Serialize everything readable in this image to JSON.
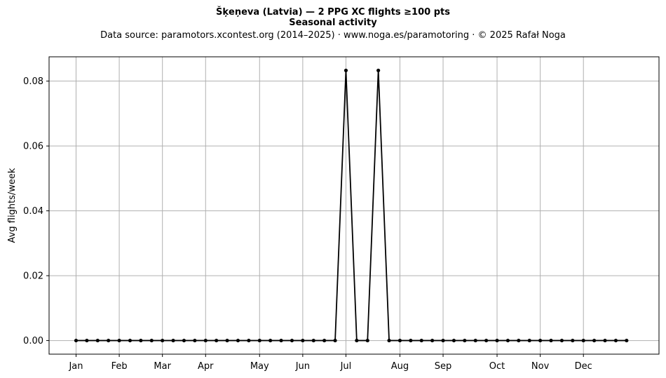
{
  "chart_data": {
    "type": "line",
    "title": "Šķeņeva (Latvia)  —  2 PPG XC flights ≥100 pts",
    "subtitle": "Seasonal activity",
    "source": "Data source: paramotors.xcontest.org (2014–2025)  ·  www.noga.es/paramotoring  ·  © 2025 Rafał Noga",
    "xlabel": "",
    "ylabel": "Avg flights/week",
    "xlim": [
      -2.5,
      54
    ],
    "ylim": [
      -0.0042,
      0.0875
    ],
    "grid": true,
    "line_color": "#000000",
    "grid_color": "#b0b0b0",
    "x_ticks": [
      {
        "label": "Jan",
        "week": 0
      },
      {
        "label": "Feb",
        "week": 4
      },
      {
        "label": "Mar",
        "week": 8
      },
      {
        "label": "Apr",
        "week": 12
      },
      {
        "label": "May",
        "week": 17
      },
      {
        "label": "Jun",
        "week": 21
      },
      {
        "label": "Jul",
        "week": 25
      },
      {
        "label": "Aug",
        "week": 30
      },
      {
        "label": "Sep",
        "week": 34
      },
      {
        "label": "Oct",
        "week": 39
      },
      {
        "label": "Nov",
        "week": 43
      },
      {
        "label": "Dec",
        "week": 47
      }
    ],
    "y_ticks": [
      "0.00",
      "0.02",
      "0.04",
      "0.06",
      "0.08"
    ],
    "y_tick_values": [
      0,
      0.02,
      0.04,
      0.06,
      0.08
    ],
    "x": [
      0,
      1,
      2,
      3,
      4,
      5,
      6,
      7,
      8,
      9,
      10,
      11,
      12,
      13,
      14,
      15,
      16,
      17,
      18,
      19,
      20,
      21,
      22,
      23,
      24,
      25,
      26,
      27,
      28,
      29,
      30,
      31,
      32,
      33,
      34,
      35,
      36,
      37,
      38,
      39,
      40,
      41,
      42,
      43,
      44,
      45,
      46,
      47,
      48,
      49,
      50,
      51
    ],
    "values": [
      0,
      0,
      0,
      0,
      0,
      0,
      0,
      0,
      0,
      0,
      0,
      0,
      0,
      0,
      0,
      0,
      0,
      0,
      0,
      0,
      0,
      0,
      0,
      0,
      0,
      0.0833,
      0,
      0,
      0.0833,
      0,
      0,
      0,
      0,
      0,
      0,
      0,
      0,
      0,
      0,
      0,
      0,
      0,
      0,
      0,
      0,
      0,
      0,
      0,
      0,
      0,
      0,
      0
    ]
  }
}
